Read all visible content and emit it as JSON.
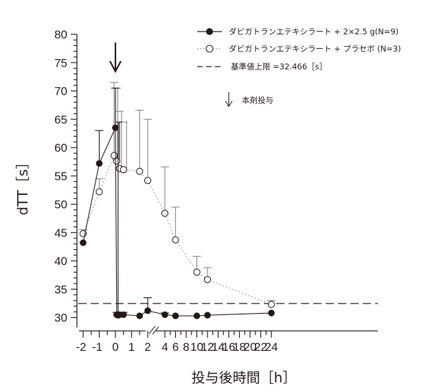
{
  "chart_data": {
    "type": "line",
    "title": "",
    "xlabel": "投与後時間［h］",
    "ylabel": "dTT［s］",
    "ylim": [
      28,
      80
    ],
    "yticks": [
      30,
      35,
      40,
      45,
      50,
      55,
      60,
      65,
      70,
      75,
      80
    ],
    "xtick_labels": [
      "-2",
      "-1",
      "0",
      "1",
      "2",
      "4",
      "6",
      "8",
      "10",
      "12",
      "14",
      "16",
      "18",
      "20",
      "22",
      "24"
    ],
    "x_axis_break": "between 2 and 4 h (//)",
    "grid": false,
    "legend_position": "upper right",
    "series": [
      {
        "name": "ダビガトランエテキシラート + 2×2.5 g(N=9)",
        "style": "solid line, filled circles",
        "x": [
          -2,
          -1,
          0,
          0.08,
          0.17,
          0.25,
          0.5,
          1.5,
          2,
          4,
          6,
          10,
          12,
          24
        ],
        "values": [
          43.2,
          57.2,
          63.5,
          30.5,
          30.4,
          30.5,
          30.5,
          30.3,
          31.2,
          30.5,
          30.3,
          30.3,
          30.4,
          30.8
        ],
        "error_upper": [
          null,
          63.0,
          70.5,
          30.9,
          30.9,
          30.9,
          30.9,
          null,
          33.5,
          30.8,
          null,
          null,
          null,
          null
        ]
      },
      {
        "name": "ダビガトランエテキシラート + プラセボ (N=3)",
        "style": "dotted line, open circles",
        "x": [
          -2,
          -1,
          -0.08,
          0.08,
          0.25,
          0.5,
          1.5,
          2,
          4,
          6,
          10,
          12,
          24
        ],
        "values": [
          44.8,
          52.2,
          58.6,
          57.6,
          56.3,
          56.1,
          55.8,
          54.2,
          48.4,
          43.7,
          38.0,
          36.7,
          32.3
        ],
        "error_upper": [
          45.5,
          54.5,
          71.5,
          70.5,
          66.4,
          64.5,
          66.6,
          65.0,
          56.6,
          49.5,
          40.8,
          38.8,
          33.0
        ]
      },
      {
        "name": "基準値上限 =32.466［s］",
        "style": "dashed horizontal line",
        "value": 32.466
      }
    ],
    "annotations": [
      {
        "type": "arrow-down",
        "x": 0,
        "label": "本剤投与"
      }
    ]
  },
  "legend": {
    "items": [
      {
        "label": "ダビガトランエテキシラート + 2×2.5 g(N=9)"
      },
      {
        "label": "ダビガトランエテキシラート +  プラセボ (N=3)"
      },
      {
        "label": "基準値上限  =32.466［s］"
      }
    ],
    "arrow_label": "本剤投与"
  },
  "axes": {
    "ylabel": "dTT［s］",
    "xlabel": "投与後時間［h］",
    "yticks": [
      "30",
      "35",
      "40",
      "45",
      "50",
      "55",
      "60",
      "65",
      "70",
      "75",
      "80"
    ],
    "xticks": [
      "-2",
      "-1",
      "0",
      "1",
      "2",
      "4",
      "6",
      "8",
      "10",
      "12",
      "14",
      "16",
      "18",
      "20",
      "22",
      "24"
    ]
  },
  "colors": {
    "ink": "#231815",
    "error_grey": "#8c8c8c"
  }
}
